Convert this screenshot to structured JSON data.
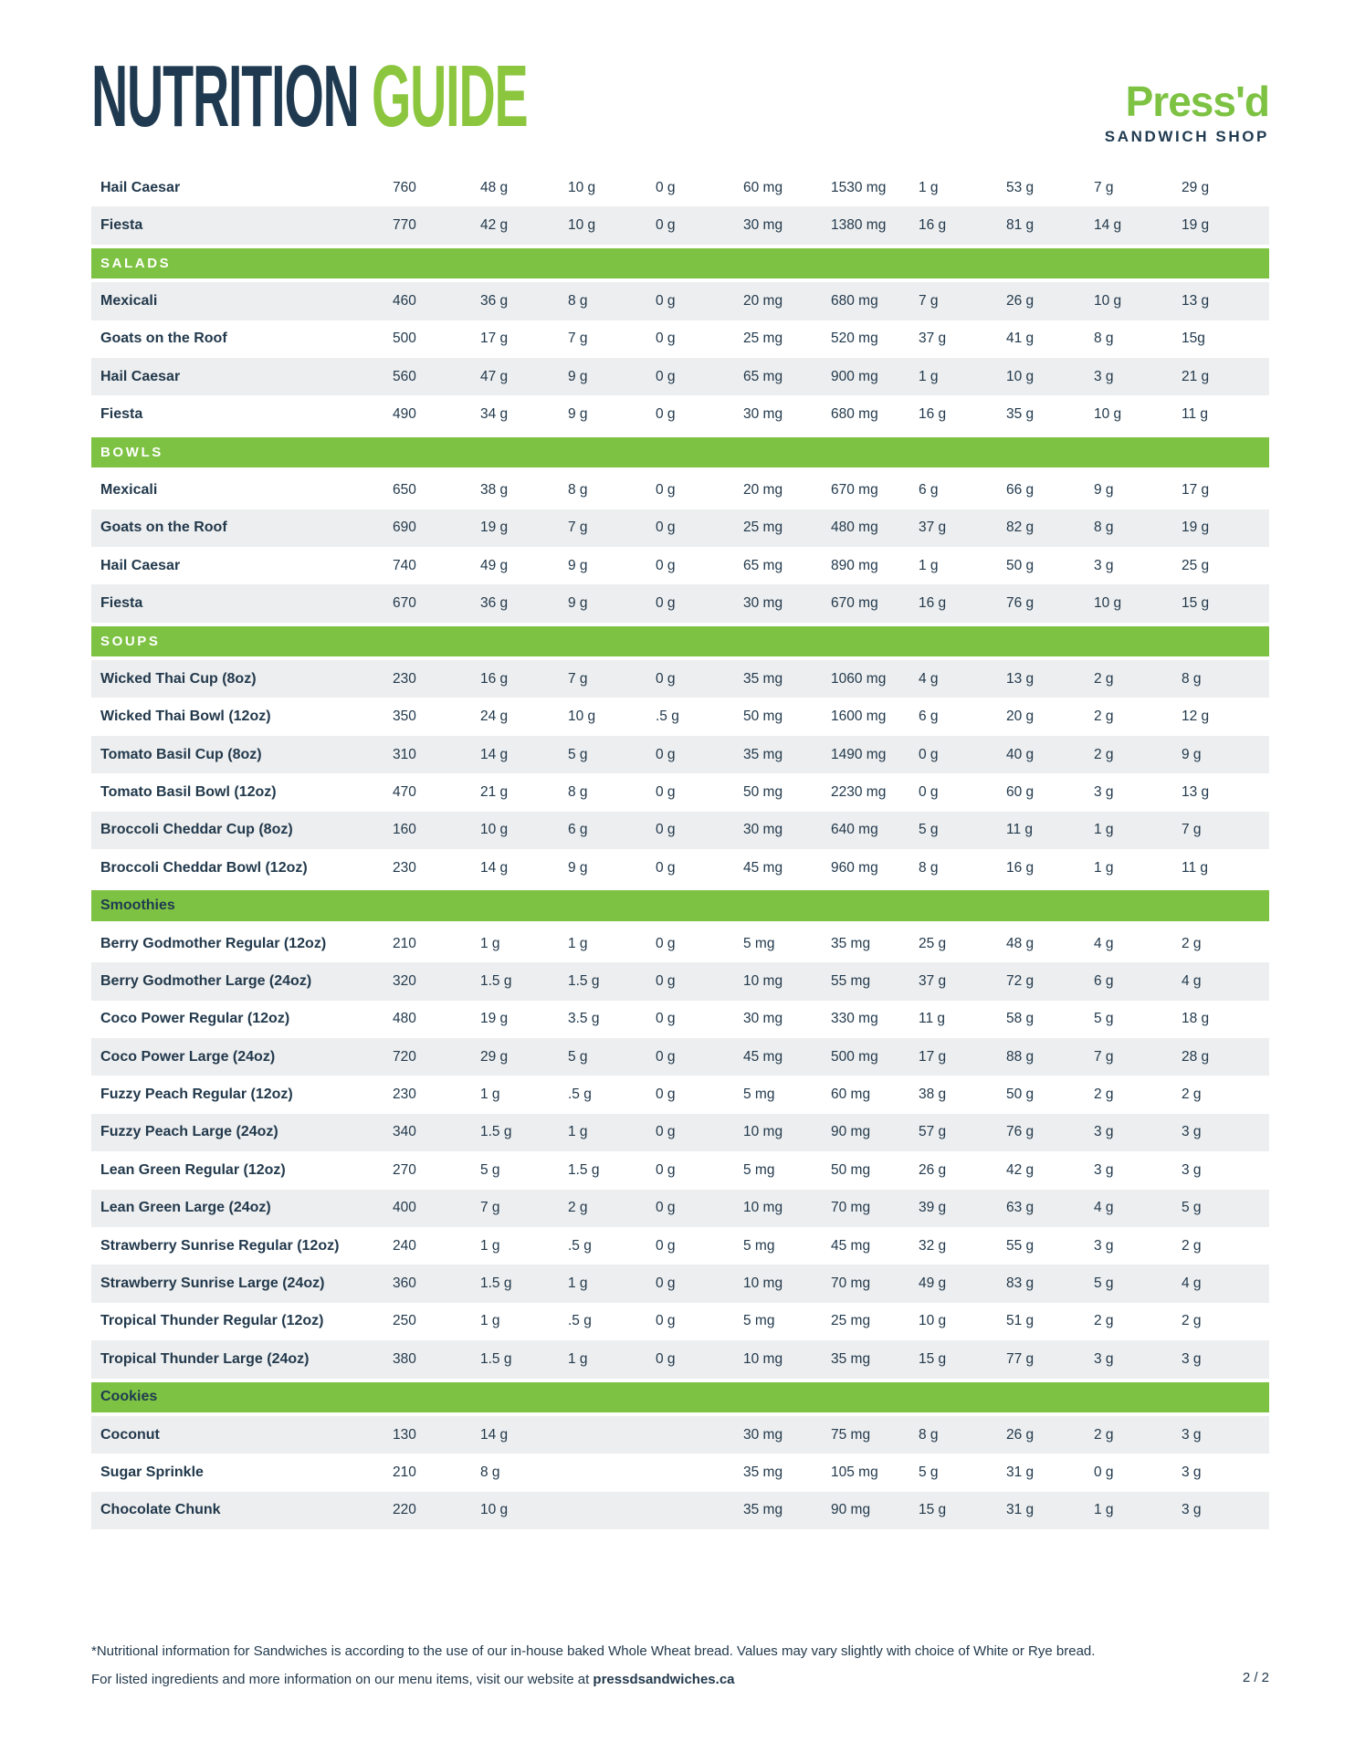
{
  "header": {
    "title_part1": "NUTRITION",
    "title_part2": "GUIDE",
    "logo_name": "Press'd",
    "logo_subtitle": "SANDWICH SHOP"
  },
  "colors": {
    "brand_green": "#7dc242",
    "title_green": "#8cc63f",
    "navy": "#1f3a50",
    "text_navy": "#22394c",
    "row_stripe_gray": "#edeeef"
  },
  "table": {
    "sections": [
      {
        "label": null,
        "rows": [
          {
            "name": "Hail Caesar",
            "values": [
              "760",
              "48 g",
              "10 g",
              "0 g",
              "60 mg",
              "1530 mg",
              "1 g",
              "53 g",
              "7 g",
              "29 g"
            ]
          },
          {
            "name": "Fiesta",
            "values": [
              "770",
              "42 g",
              "10 g",
              "0 g",
              "30 mg",
              "1380 mg",
              "16 g",
              "81 g",
              "14 g",
              "19 g"
            ]
          }
        ]
      },
      {
        "label": "SALADS",
        "rows": [
          {
            "name": "Mexicali",
            "values": [
              "460",
              "36 g",
              "8 g",
              "0 g",
              "20 mg",
              "680 mg",
              "7 g",
              "26 g",
              "10 g",
              "13 g"
            ]
          },
          {
            "name": "Goats on the Roof",
            "values": [
              "500",
              "17 g",
              "7 g",
              "0 g",
              "25 mg",
              "520 mg",
              "37 g",
              "41 g",
              "8 g",
              "15g"
            ]
          },
          {
            "name": "Hail Caesar",
            "values": [
              "560",
              "47 g",
              "9 g",
              "0 g",
              "65 mg",
              "900 mg",
              "1 g",
              "10 g",
              "3 g",
              "21 g"
            ]
          },
          {
            "name": "Fiesta",
            "values": [
              "490",
              "34 g",
              "9 g",
              "0 g",
              "30 mg",
              "680 mg",
              "16 g",
              "35 g",
              "10 g",
              "11 g"
            ]
          }
        ]
      },
      {
        "label": "BOWLS",
        "rows": [
          {
            "name": "Mexicali",
            "values": [
              "650",
              "38 g",
              "8 g",
              "0 g",
              "20 mg",
              "670 mg",
              "6 g",
              "66 g",
              "9 g",
              "17 g"
            ]
          },
          {
            "name": "Goats on the Roof",
            "values": [
              "690",
              "19 g",
              "7 g",
              "0 g",
              "25 mg",
              "480 mg",
              "37 g",
              "82 g",
              "8 g",
              "19 g"
            ]
          },
          {
            "name": "Hail Caesar",
            "values": [
              "740",
              "49 g",
              "9 g",
              "0 g",
              "65 mg",
              "890 mg",
              "1 g",
              "50 g",
              "3 g",
              "25 g"
            ]
          },
          {
            "name": "Fiesta",
            "values": [
              "670",
              "36 g",
              "9 g",
              "0 g",
              "30 mg",
              "670 mg",
              "16 g",
              "76 g",
              "10 g",
              "15 g"
            ]
          }
        ]
      },
      {
        "label": "SOUPS",
        "rows": [
          {
            "name": "Wicked Thai Cup (8oz)",
            "values": [
              "230",
              "16 g",
              "7 g",
              "0 g",
              "35 mg",
              "1060 mg",
              "4 g",
              "13 g",
              "2 g",
              "8 g"
            ]
          },
          {
            "name": "Wicked Thai Bowl (12oz)",
            "values": [
              "350",
              "24 g",
              "10 g",
              ".5 g",
              "50 mg",
              "1600 mg",
              "6 g",
              "20 g",
              "2 g",
              "12 g"
            ]
          },
          {
            "name": "Tomato Basil Cup (8oz)",
            "values": [
              "310",
              "14 g",
              "5 g",
              "0 g",
              "35 mg",
              "1490 mg",
              "0 g",
              "40 g",
              "2 g",
              "9 g"
            ]
          },
          {
            "name": "Tomato Basil Bowl (12oz)",
            "values": [
              "470",
              "21 g",
              "8 g",
              "0 g",
              "50 mg",
              "2230 mg",
              "0 g",
              "60 g",
              "3 g",
              "13 g"
            ]
          },
          {
            "name": "Broccoli Cheddar Cup (8oz)",
            "values": [
              "160",
              "10 g",
              "6 g",
              "0 g",
              "30 mg",
              "640 mg",
              "5 g",
              "11 g",
              "1 g",
              "7 g"
            ]
          },
          {
            "name": "Broccoli Cheddar Bowl (12oz)",
            "values": [
              "230",
              "14 g",
              "9 g",
              "0 g",
              "45 mg",
              "960 mg",
              "8 g",
              "16 g",
              "1 g",
              "11 g"
            ]
          }
        ]
      },
      {
        "label": "Smoothies",
        "rows": [
          {
            "name": "Berry Godmother Regular (12oz)",
            "values": [
              "210",
              "1 g",
              "1 g",
              "0 g",
              "5 mg",
              "35 mg",
              "25 g",
              "48 g",
              "4 g",
              "2 g"
            ]
          },
          {
            "name": "Berry Godmother Large (24oz)",
            "values": [
              "320",
              "1.5 g",
              "1.5 g",
              "0 g",
              "10 mg",
              "55 mg",
              "37 g",
              "72 g",
              "6 g",
              "4 g"
            ]
          },
          {
            "name": "Coco Power Regular (12oz)",
            "values": [
              "480",
              "19 g",
              "3.5 g",
              "0 g",
              "30 mg",
              "330 mg",
              "11 g",
              "58 g",
              "5 g",
              "18 g"
            ]
          },
          {
            "name": "Coco Power Large (24oz)",
            "values": [
              "720",
              "29 g",
              "5 g",
              "0 g",
              "45 mg",
              "500 mg",
              "17 g",
              "88 g",
              "7 g",
              "28 g"
            ]
          },
          {
            "name": "Fuzzy Peach Regular (12oz)",
            "values": [
              "230",
              "1 g",
              ".5 g",
              "0 g",
              "5 mg",
              "60 mg",
              "38 g",
              "50 g",
              "2 g",
              "2 g"
            ]
          },
          {
            "name": "Fuzzy Peach Large (24oz)",
            "values": [
              "340",
              "1.5 g",
              "1 g",
              "0 g",
              "10 mg",
              "90 mg",
              "57 g",
              "76 g",
              "3 g",
              "3 g"
            ]
          },
          {
            "name": "Lean Green Regular (12oz)",
            "values": [
              "270",
              "5 g",
              "1.5 g",
              "0 g",
              "5 mg",
              "50 mg",
              "26 g",
              "42 g",
              "3 g",
              "3 g"
            ]
          },
          {
            "name": "Lean Green Large (24oz)",
            "values": [
              "400",
              "7 g",
              "2 g",
              "0 g",
              "10 mg",
              "70 mg",
              "39 g",
              "63 g",
              "4 g",
              "5 g"
            ]
          },
          {
            "name": "Strawberry Sunrise Regular (12oz)",
            "values": [
              "240",
              "1 g",
              ".5 g",
              "0 g",
              "5 mg",
              "45 mg",
              "32 g",
              "55 g",
              "3 g",
              "2 g"
            ]
          },
          {
            "name": "Strawberry Sunrise Large (24oz)",
            "values": [
              "360",
              "1.5 g",
              "1 g",
              "0 g",
              "10 mg",
              "70 mg",
              "49 g",
              "83 g",
              "5 g",
              "4 g"
            ]
          },
          {
            "name": "Tropical Thunder Regular (12oz)",
            "values": [
              "250",
              "1 g",
              ".5 g",
              "0 g",
              "5 mg",
              "25 mg",
              "10 g",
              "51 g",
              "2 g",
              "2 g"
            ]
          },
          {
            "name": "Tropical Thunder Large (24oz)",
            "values": [
              "380",
              "1.5 g",
              "1 g",
              "0 g",
              "10 mg",
              "35 mg",
              "15 g",
              "77 g",
              "3 g",
              "3 g"
            ]
          }
        ]
      },
      {
        "label": "Cookies",
        "rows": [
          {
            "name": "Coconut",
            "values": [
              "130",
              "14 g",
              "",
              "",
              "30 mg",
              "75 mg",
              "8 g",
              "26 g",
              "2 g",
              "3 g"
            ]
          },
          {
            "name": "Sugar Sprinkle",
            "values": [
              "210",
              "8 g",
              "",
              "",
              "35 mg",
              "105 mg",
              "5 g",
              "31 g",
              "0 g",
              "3 g"
            ]
          },
          {
            "name": "Chocolate Chunk",
            "values": [
              "220",
              "10 g",
              "",
              "",
              "35 mg",
              "90 mg",
              "15 g",
              "31 g",
              "1 g",
              "3 g"
            ]
          }
        ]
      }
    ]
  },
  "footer": {
    "note": "*Nutritional information for Sandwiches is according to the use of our in-house baked Whole Wheat bread. Values may vary slightly with choice of White or Rye bread.",
    "info_prefix": "For listed ingredients and more information on our menu items, visit our website at ",
    "website": "pressdsandwiches.ca",
    "page": "2 / 2"
  }
}
